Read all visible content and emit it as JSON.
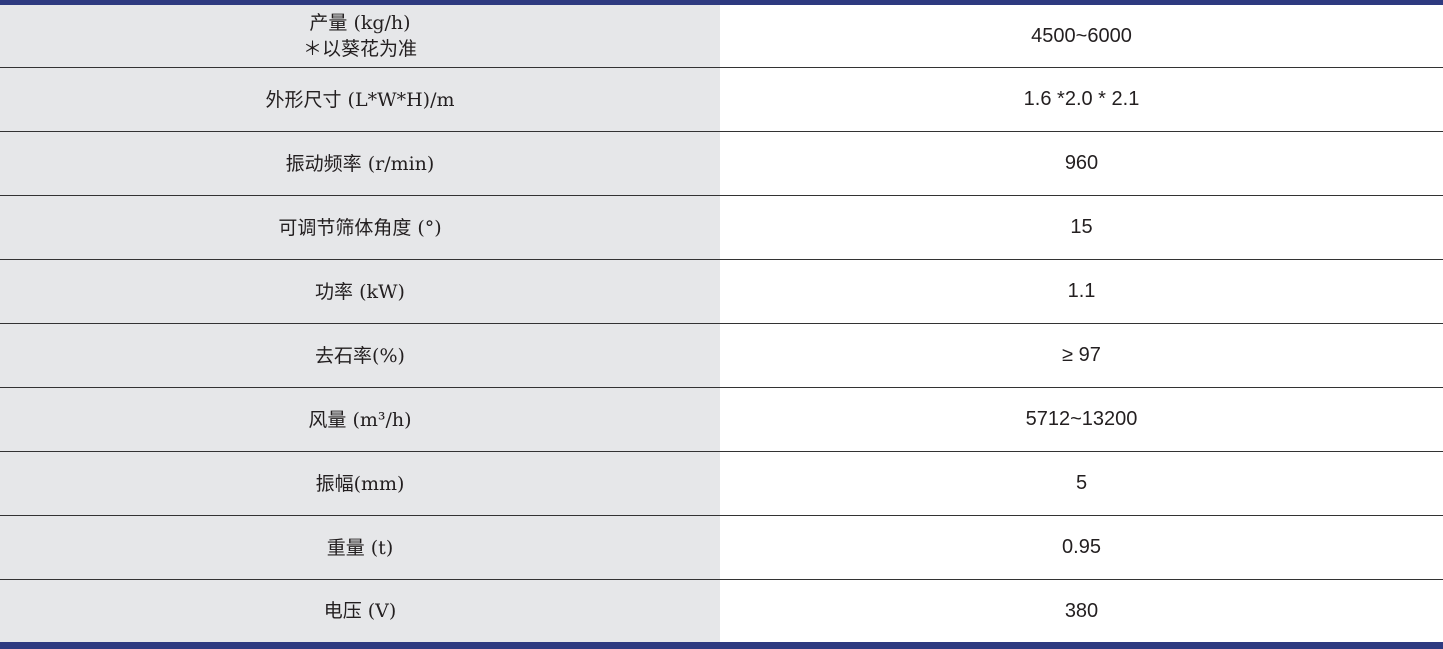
{
  "colors": {
    "accent_bar": "#2e3a80",
    "label_bg": "#e6e7e9",
    "value_bg": "#ffffff"
  },
  "rows": [
    {
      "label": "产量 (kg/h)",
      "note": "＊以葵花为准",
      "value": "4500~6000"
    },
    {
      "label": "外形尺寸 (L*W*H)/m",
      "value": "1.6 *2.0 * 2.1"
    },
    {
      "label": "振动频率 (r/min)",
      "value": "960"
    },
    {
      "label": "可调节筛体角度 (°)",
      "value": "15"
    },
    {
      "label": "功率 (kW)",
      "value": "1.1"
    },
    {
      "label": "去石率(%)",
      "value": "≥ 97"
    },
    {
      "label": "风量 (m³/h)",
      "value": "5712~13200"
    },
    {
      "label": "振幅(mm)",
      "value": "5"
    },
    {
      "label": "重量 (t)",
      "value": "0.95"
    },
    {
      "label": "电压 (V)",
      "value": "380"
    }
  ]
}
